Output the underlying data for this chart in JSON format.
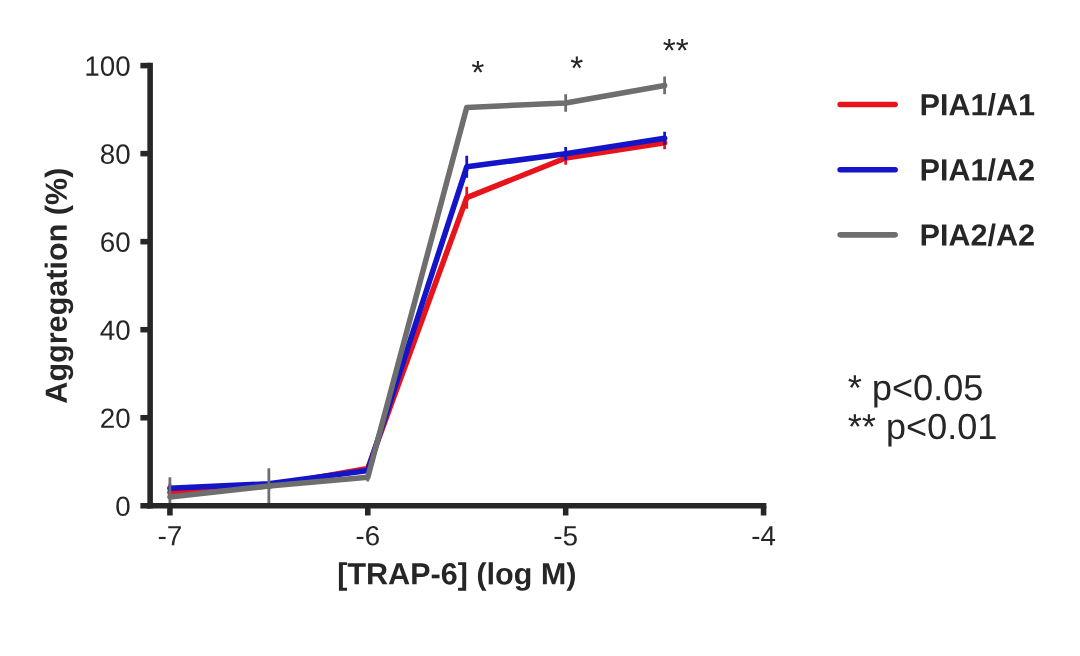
{
  "chart_data": {
    "type": "line",
    "xlabel": "[TRAP-6] (log M)",
    "ylabel": "Aggregation (%)",
    "x": [
      -7,
      -6.5,
      -6,
      -5.5,
      -5,
      -4.5
    ],
    "series": [
      {
        "name": "PIA1/A1",
        "color": "#e8141c",
        "values": [
          3,
          4.5,
          8.5,
          70,
          79,
          82.5
        ],
        "errors": [
          null,
          null,
          1,
          2.5,
          1.5,
          1.5
        ]
      },
      {
        "name": "PIA1/A2",
        "color": "#1414c8",
        "values": [
          4,
          5,
          8,
          77,
          80,
          83.5
        ],
        "errors": [
          1,
          null,
          1,
          2.5,
          1.5,
          1.5
        ]
      },
      {
        "name": "PIA2/A2",
        "color": "#6e6e6e",
        "values": [
          2,
          4.5,
          6.5,
          90.5,
          91.5,
          95.5
        ],
        "errors": [
          4.5,
          4,
          1,
          null,
          2,
          2
        ]
      }
    ],
    "xlim": [
      -7.1,
      -4
    ],
    "xticks": [
      -7,
      -6,
      -5,
      -4
    ],
    "ylim": [
      0,
      100
    ],
    "yticks": [
      0,
      20,
      40,
      60,
      80,
      100
    ],
    "grid": false,
    "legend": "right",
    "marker": "none",
    "line_style": "solid",
    "annotations": [
      {
        "text": "*",
        "x": -5.5,
        "y": 90.5
      },
      {
        "text": "*",
        "x": -5,
        "y": 91.5
      },
      {
        "text": "**",
        "x": -4.5,
        "y": 95.5
      },
      "* p<0.05\n** p<0.01"
    ]
  }
}
